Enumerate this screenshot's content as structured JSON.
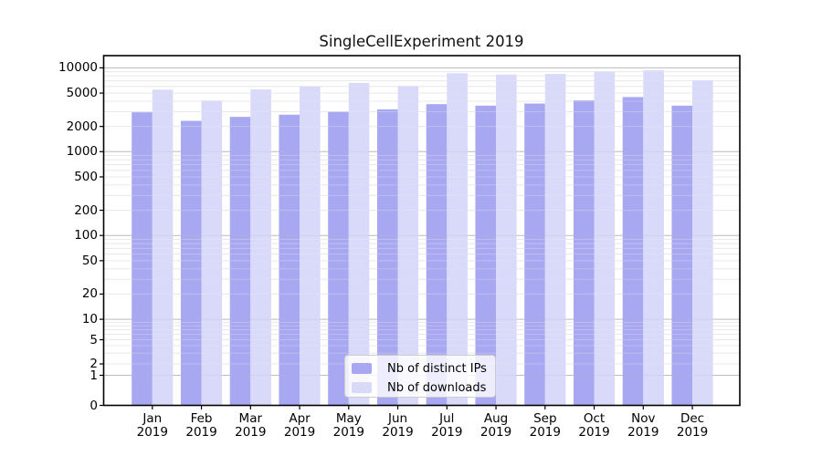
{
  "chart_data": {
    "type": "bar",
    "title": "SingleCellExperiment 2019",
    "categories": [
      "Jan",
      "Feb",
      "Mar",
      "Apr",
      "May",
      "Jun",
      "Jul",
      "Aug",
      "Sep",
      "Oct",
      "Nov",
      "Dec"
    ],
    "x_tick_second_line": "2019",
    "series": [
      {
        "name": "Nb of distinct IPs",
        "color": "#a7a7f2",
        "values": [
          2950,
          2330,
          2600,
          2760,
          2990,
          3200,
          3690,
          3540,
          3750,
          4090,
          4480,
          3540
        ]
      },
      {
        "name": "Nb of downloads",
        "color": "#d9d9fa",
        "values": [
          5500,
          4080,
          5520,
          5970,
          6590,
          6080,
          8610,
          8320,
          8450,
          9050,
          9350,
          7100
        ]
      }
    ],
    "y_axis": {
      "scale": "symlog",
      "ticks": [
        0,
        1,
        2,
        5,
        10,
        20,
        50,
        100,
        200,
        500,
        1000,
        2000,
        5000,
        10000
      ],
      "top_value": 14000
    },
    "grid": {
      "major": true,
      "minor": true
    },
    "legend": {
      "position": "lower-center",
      "entries": [
        "Nb of distinct IPs",
        "Nb of downloads"
      ]
    }
  },
  "colors": {
    "grid_major": "#bdbdbd",
    "grid_minor": "#e9e9e9",
    "spine": "#000000",
    "background": "#ffffff"
  }
}
